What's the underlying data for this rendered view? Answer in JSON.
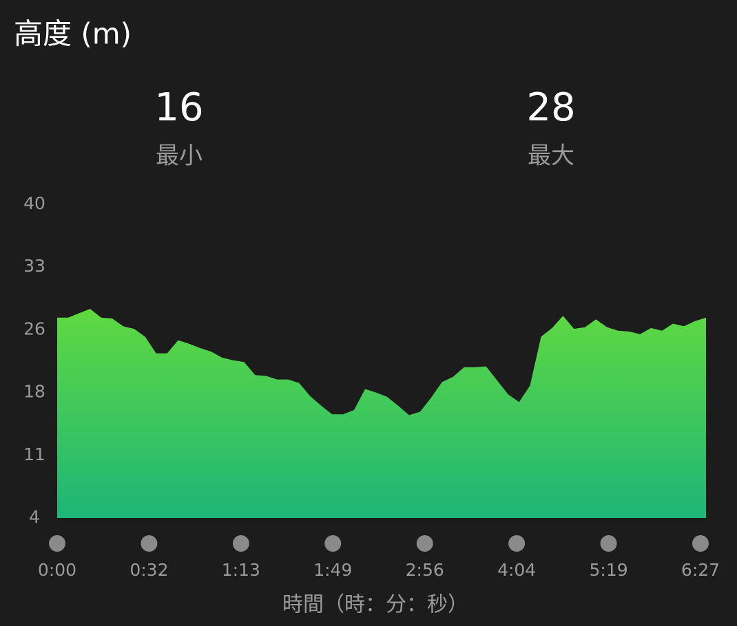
{
  "chart_data": {
    "type": "area",
    "title": "高度 (m)",
    "stats": [
      {
        "value": 16,
        "label": "最小"
      },
      {
        "value": 28,
        "label": "最大"
      }
    ],
    "ylim": [
      4,
      40
    ],
    "yticks": [
      40,
      {
        "value": 32.8,
        "label": "33"
      },
      {
        "value": 25.6,
        "label": "26"
      },
      {
        "value": 18.4,
        "label": "18"
      },
      {
        "value": 11.2,
        "label": "11"
      },
      4
    ],
    "time_labels": [
      "0:00",
      "0:32",
      "1:13",
      "1:49",
      "2:56",
      "4:04",
      "5:19",
      "6:27"
    ],
    "x_label": "時間（時：分：秒）",
    "colors": [
      "#5fd940",
      "#1db578"
    ],
    "values": [
      27.0,
      27.0,
      27.5,
      28.0,
      27.0,
      26.9,
      26.0,
      25.7,
      24.8,
      22.9,
      22.9,
      24.4,
      24.0,
      23.5,
      23.1,
      22.4,
      22.1,
      21.9,
      20.4,
      20.3,
      19.9,
      19.9,
      19.5,
      18.0,
      16.9,
      15.9,
      15.9,
      16.4,
      18.8,
      18.4,
      17.9,
      16.9,
      15.8,
      16.2,
      17.8,
      19.6,
      20.2,
      21.3,
      21.3,
      21.4,
      19.8,
      18.2,
      17.3,
      19.2,
      24.8,
      25.8,
      27.2,
      25.7,
      25.9,
      26.8,
      25.9,
      25.5,
      25.4,
      25.1,
      25.8,
      25.5,
      26.3,
      26.0,
      26.6,
      27.0
    ]
  }
}
